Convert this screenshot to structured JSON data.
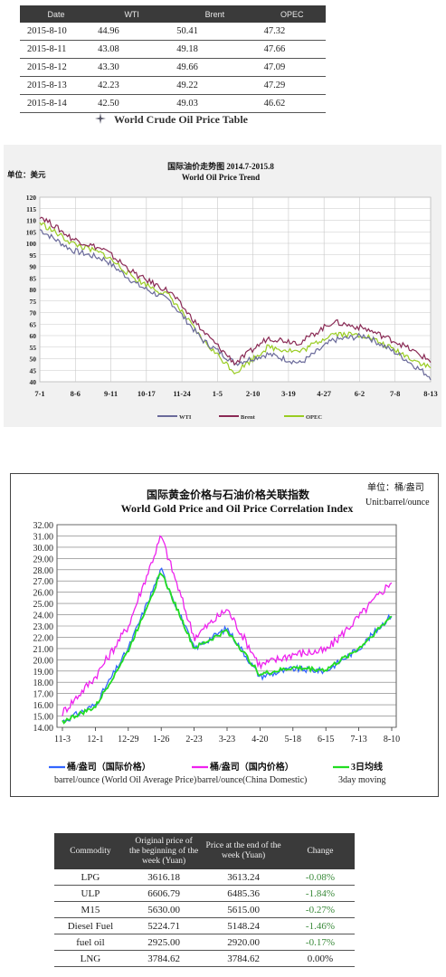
{
  "price_table": {
    "headers": [
      "Date",
      "WTI",
      "Brent",
      "OPEC"
    ],
    "rows": [
      [
        "2015-8-10",
        "44.96",
        "50.41",
        "47.32"
      ],
      [
        "2015-8-11",
        "43.08",
        "49.18",
        "47.66"
      ],
      [
        "2015-8-12",
        "43.30",
        "49.66",
        "47.09"
      ],
      [
        "2015-8-13",
        "42.23",
        "49.22",
        "47.29"
      ],
      [
        "2015-8-14",
        "42.50",
        "49.03",
        "46.62"
      ]
    ],
    "caption": "World Crude Oil Price Table"
  },
  "chart_data": [
    {
      "type": "line",
      "title": "国际油价走势图 2014.7-2015.8",
      "subtitle": "World Oil Price Trend",
      "unit_label": "单位：美元",
      "ylim": [
        40,
        120
      ],
      "yticks": [
        40,
        45,
        50,
        55,
        60,
        65,
        70,
        75,
        80,
        85,
        90,
        95,
        100,
        105,
        110,
        115,
        120
      ],
      "xticks": [
        "7-1",
        "8-6",
        "9-11",
        "10-17",
        "11-24",
        "1-5",
        "2-10",
        "3-19",
        "4-27",
        "6-2",
        "7-8",
        "8-13"
      ],
      "grid": true,
      "legend_position": "bottom",
      "colors": {
        "WTI": "#6a6a9a",
        "Brent": "#8a2a55",
        "OPEC": "#99cc22"
      },
      "series": [
        {
          "name": "WTI",
          "values": [
            106,
            97,
            93,
            82,
            75,
            58,
            48,
            52,
            48,
            58,
            60,
            52,
            42
          ]
        },
        {
          "name": "Brent",
          "values": [
            112,
            102,
            97,
            86,
            79,
            62,
            48,
            59,
            57,
            66,
            63,
            57,
            49
          ]
        },
        {
          "name": "OPEC",
          "values": [
            109,
            100,
            95,
            84,
            77,
            58,
            44,
            55,
            53,
            61,
            60,
            53,
            46
          ]
        }
      ]
    },
    {
      "type": "line",
      "title": "国际黄金价格与石油价格关联指数",
      "subtitle": "World Gold Price and Oil Price Correlation Index",
      "unit_label_cn": "单位：桶/盎司",
      "unit_label_en": "Unit:barrel/ounce",
      "ylim": [
        14,
        32
      ],
      "yticks": [
        "14.00",
        "15.00",
        "16.00",
        "17.00",
        "18.00",
        "19.00",
        "20.00",
        "21.00",
        "22.00",
        "23.00",
        "24.00",
        "25.00",
        "26.00",
        "27.00",
        "28.00",
        "29.00",
        "30.00",
        "31.00",
        "32.00"
      ],
      "xticks": [
        "11-3",
        "12-1",
        "12-29",
        "1-26",
        "2-23",
        "3-23",
        "4-20",
        "5-18",
        "6-15",
        "7-13",
        "8-10"
      ],
      "grid": true,
      "legend_position": "bottom",
      "colors": {
        "intl": "#3366ff",
        "domestic": "#ee22ee",
        "ma3": "#22dd22"
      },
      "series": [
        {
          "name": "桶/盎司（国际价格）",
          "name_en": "barrel/ounce (World Oil Average Price)",
          "values": [
            14.5,
            16.0,
            21.0,
            28.0,
            21.0,
            22.8,
            18.5,
            19.2,
            19.0,
            21.0,
            24.0
          ]
        },
        {
          "name": "桶/盎司（国内价格）",
          "name_en": "barrel/ounce(China Domestic)",
          "values": [
            15.3,
            18.5,
            23.0,
            31.0,
            22.0,
            24.5,
            19.5,
            20.5,
            20.8,
            23.8,
            27.0
          ]
        },
        {
          "name": "3日均线",
          "name_en": "3day moving",
          "values": [
            14.5,
            15.8,
            20.8,
            27.8,
            21.0,
            22.6,
            18.7,
            19.3,
            19.1,
            21.0,
            23.9
          ]
        }
      ]
    }
  ],
  "products_table": {
    "headers": [
      "Commodity",
      "Original price of the beginning of the week (Yuan)",
      "Price at the end of the week (Yuan)",
      "Change"
    ],
    "rows": [
      [
        "LPG",
        "3616.18",
        "3613.24",
        "-0.08%"
      ],
      [
        "ULP",
        "6606.79",
        "6485.36",
        "-1.84%"
      ],
      [
        "M15",
        "5630.00",
        "5615.00",
        "-0.27%"
      ],
      [
        "Diesel Fuel",
        "5224.71",
        "5148.24",
        "-1.46%"
      ],
      [
        "fuel oil",
        "2925.00",
        "2920.00",
        "-0.17%"
      ],
      [
        "LNG",
        "3784.62",
        "3784.62",
        "0.00%"
      ]
    ]
  }
}
